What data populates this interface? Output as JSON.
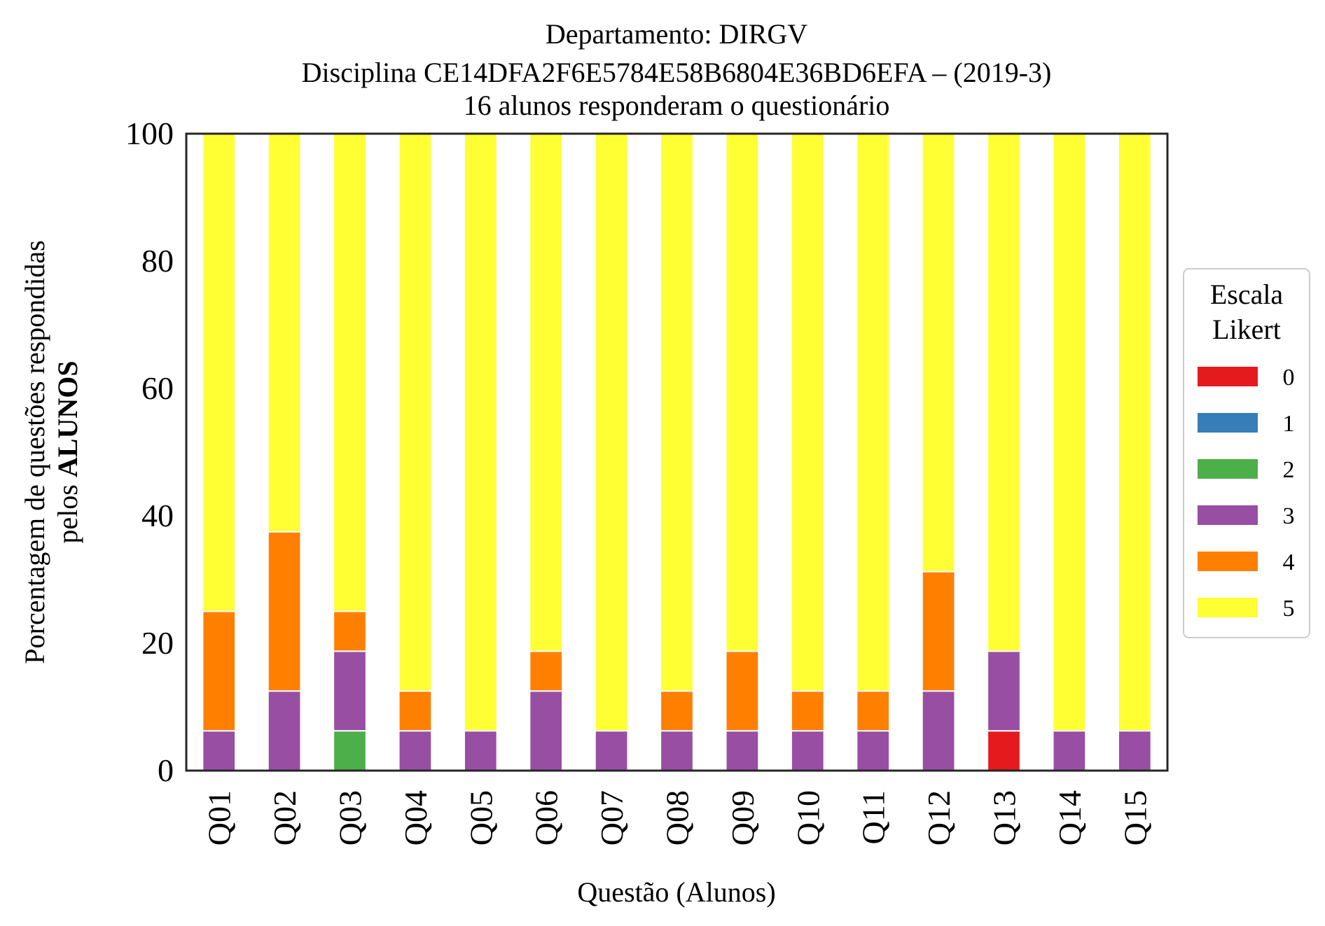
{
  "chart_data": {
    "type": "bar",
    "stacked": true,
    "title": [
      "Departamento: DIRGV",
      "Disciplina CE14DFA2F6E5784E58B6804E36BD6EFA – (2019-3)",
      "16 alunos responderam o questionário"
    ],
    "xlabel": "Questão (Alunos)",
    "ylabel_line1": "Porcentagem de questões respondidas",
    "ylabel_line2_prefix": "pelos ",
    "ylabel_line2_bold": "ALUNOS",
    "ylim": [
      0,
      100
    ],
    "yticks": [
      "0",
      "20",
      "40",
      "60",
      "80",
      "100"
    ],
    "grid": false,
    "legend": {
      "title": [
        "Escala",
        "Likert"
      ],
      "placement": "center-right"
    },
    "categories": [
      "Q01",
      "Q02",
      "Q03",
      "Q04",
      "Q05",
      "Q06",
      "Q07",
      "Q08",
      "Q09",
      "Q10",
      "Q11",
      "Q12",
      "Q13",
      "Q14",
      "Q15"
    ],
    "series": [
      {
        "name": "0",
        "color": "#e41a1c",
        "values": [
          0,
          0,
          0,
          0,
          0,
          0,
          0,
          0,
          0,
          0,
          0,
          0,
          6.25,
          0,
          0
        ]
      },
      {
        "name": "1",
        "color": "#377eb8",
        "values": [
          0,
          0,
          0,
          0,
          0,
          0,
          0,
          0,
          0,
          0,
          0,
          0,
          0,
          0,
          0
        ]
      },
      {
        "name": "2",
        "color": "#4daf4a",
        "values": [
          0,
          0,
          6.25,
          0,
          0,
          0,
          0,
          0,
          0,
          0,
          0,
          0,
          0,
          0,
          0
        ]
      },
      {
        "name": "3",
        "color": "#984ea3",
        "values": [
          6.25,
          12.5,
          12.5,
          6.25,
          6.25,
          12.5,
          6.25,
          6.25,
          6.25,
          6.25,
          6.25,
          12.5,
          12.5,
          6.25,
          6.25
        ]
      },
      {
        "name": "4",
        "color": "#ff7f00",
        "values": [
          18.75,
          25,
          6.25,
          6.25,
          0,
          6.25,
          0,
          6.25,
          12.5,
          6.25,
          6.25,
          18.75,
          0,
          0,
          0
        ]
      },
      {
        "name": "5",
        "color": "#ffff33",
        "values": [
          75,
          62.5,
          75,
          87.5,
          93.75,
          81.25,
          93.75,
          87.5,
          81.25,
          87.5,
          87.5,
          68.75,
          81.25,
          93.75,
          93.75
        ]
      }
    ]
  }
}
